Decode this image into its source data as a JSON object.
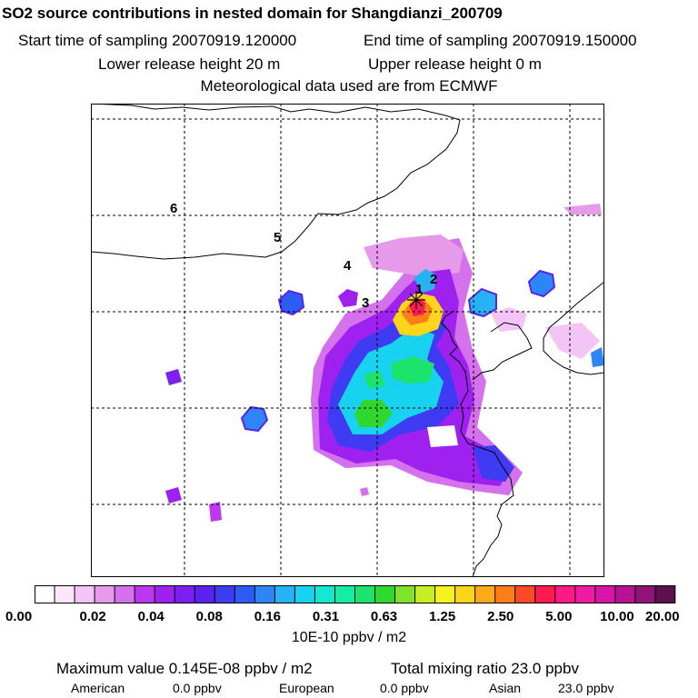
{
  "header": {
    "title": "SO2 source contributions in nested domain for Shangdianzi_200709",
    "start_label": "Start time of sampling 20070919.120000",
    "end_label": "End time of sampling 20070919.150000",
    "lower_label": "Lower release height   20 m",
    "upper_label": "Upper release height    0 m",
    "met_label": "Meteorological data used are from ECMWF"
  },
  "chart_data": {
    "type": "heatmap",
    "title": "SO2 source contributions in nested domain for Shangdianzi_200709",
    "colorbar": {
      "unit_label": "10E-10 ppbv / m2",
      "tick_labels": [
        "0.00",
        "0.02",
        "0.04",
        "0.08",
        "0.16",
        "0.31",
        "0.63",
        "1.25",
        "2.50",
        "5.00",
        "10.00",
        "20.00"
      ],
      "colors": [
        "#ffffff",
        "#fbe6fb",
        "#f3c4f5",
        "#e59be9",
        "#d671ee",
        "#bb38ee",
        "#9e21f0",
        "#7d1ef2",
        "#5a22ee",
        "#3f3bf2",
        "#2d5cf4",
        "#2e86f6",
        "#27b2f3",
        "#18d3f0",
        "#14e8d2",
        "#14eea2",
        "#1be36b",
        "#2fd82f",
        "#7fe22b",
        "#c5ee23",
        "#f5f31f",
        "#ffd51c",
        "#ffab19",
        "#ff7e18",
        "#ff4a2a",
        "#ff1a52",
        "#ff1a85",
        "#f219a4",
        "#d815a6",
        "#b81192",
        "#921478",
        "#5e0f4e"
      ]
    },
    "receptor": {
      "name": "Shangdianzi"
    },
    "source_region_labels": [
      "1",
      "2",
      "3",
      "4",
      "5",
      "6"
    ],
    "maximum_value_ppbv_per_m2": "0.145E-08",
    "total_mixing_ratio_ppbv": 23.0,
    "contributions_ppbv": {
      "American": 0.0,
      "European": 0.0,
      "Asian": 23.0
    },
    "colors": {
      "coastline": "#000000",
      "grid": "#000000",
      "frame": "#000000"
    }
  },
  "footer": {
    "max_label": "Maximum value  0.145E-08 ppbv / m2",
    "total_label": "Total mixing ratio      23.0 ppbv",
    "american_label": "American",
    "american_value": "0.0 ppbv",
    "european_label": "European",
    "european_value": "0.0 ppbv",
    "asian_label": "Asian",
    "asian_value": "23.0 ppbv"
  }
}
